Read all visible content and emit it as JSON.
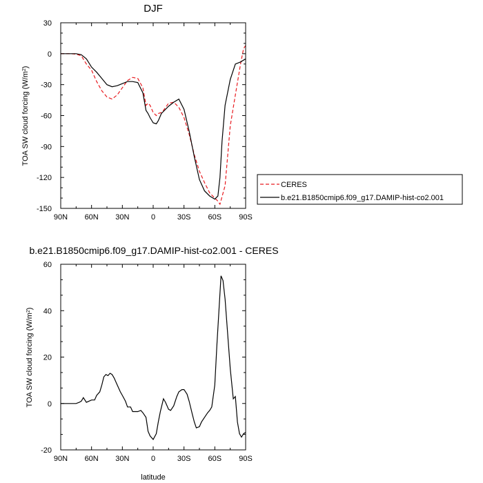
{
  "chart_data": [
    {
      "type": "line",
      "title": "DJF",
      "xlabel": "",
      "ylabel": "TOA SW cloud forcing (W/m²)",
      "ylabel_base": "TOA SW cloud forcing (W/m",
      "ylabel_sup": "2",
      "ylabel_close": ")",
      "xlim": [
        90,
        -90
      ],
      "ylim": [
        -150,
        30
      ],
      "xticks": [
        90,
        60,
        30,
        0,
        -30,
        -60,
        -90
      ],
      "xtick_labels": [
        "90N",
        "60N",
        "30N",
        "0",
        "30S",
        "60S",
        "90S"
      ],
      "yticks": [
        30,
        0,
        -30,
        -60,
        -90,
        -120,
        -150
      ],
      "ytick_labels": [
        "30",
        "0",
        "-30",
        "-60",
        "-90",
        "-120",
        "-150"
      ],
      "legend_position": "right-bottom",
      "series": [
        {
          "name": "CERES",
          "color": "#e8191e",
          "style": "dashed",
          "x": [
            90,
            85,
            80,
            75,
            70,
            65,
            60,
            55,
            50,
            45,
            40,
            35,
            30,
            25,
            20,
            15,
            10,
            7,
            5,
            3,
            0,
            -3,
            -5,
            -8,
            -10,
            -15,
            -20,
            -25,
            -30,
            -35,
            -40,
            -45,
            -50,
            -55,
            -60,
            -63,
            -65,
            -70,
            -75,
            -80,
            -85,
            -88,
            -90
          ],
          "y": [
            0,
            0,
            0,
            -0.5,
            -2,
            -10,
            -16,
            -27,
            -36,
            -42,
            -44,
            -40,
            -33,
            -26,
            -23,
            -24,
            -33,
            -50,
            -48,
            -50,
            -57,
            -60,
            -58,
            -57,
            -55,
            -48,
            -47,
            -52,
            -62,
            -78,
            -98,
            -114,
            -125,
            -135,
            -140,
            -143,
            -146,
            -128,
            -70,
            -40,
            -10,
            5,
            8
          ]
        },
        {
          "name": "b.e21.B1850cmip6.f09_g17.DAMIP-hist-co2.001",
          "color": "#000000",
          "style": "solid",
          "x": [
            90,
            85,
            80,
            75,
            70,
            65,
            60,
            55,
            50,
            45,
            40,
            35,
            30,
            25,
            20,
            15,
            10,
            7,
            5,
            3,
            0,
            -3,
            -5,
            -8,
            -10,
            -15,
            -20,
            -25,
            -30,
            -35,
            -40,
            -45,
            -50,
            -55,
            -60,
            -63,
            -65,
            -67,
            -70,
            -75,
            -80,
            -85,
            -90
          ],
          "y": [
            0,
            0,
            0,
            0,
            -1,
            -5,
            -13,
            -18,
            -24,
            -30,
            -32,
            -31,
            -29,
            -27,
            -27,
            -28,
            -38,
            -55,
            -58,
            -62,
            -67,
            -68,
            -65,
            -58,
            -56,
            -51,
            -47,
            -44,
            -54,
            -75,
            -100,
            -122,
            -133,
            -138,
            -141,
            -138,
            -120,
            -85,
            -50,
            -25,
            -10,
            -8,
            -5
          ]
        }
      ]
    },
    {
      "type": "line",
      "title": "b.e21.B1850cmip6.f09_g17.DAMIP-hist-co2.001 - CERES",
      "xlabel": "latitude",
      "ylabel": "TOA SW cloud forcing (W/m²)",
      "ylabel_base": "TOA SW cloud forcing (W/m",
      "ylabel_sup": "2",
      "ylabel_close": ")",
      "xlim": [
        90,
        -90
      ],
      "ylim": [
        -20,
        60
      ],
      "xticks": [
        90,
        60,
        30,
        0,
        -30,
        -60,
        -90
      ],
      "xtick_labels": [
        "90N",
        "60N",
        "30N",
        "0",
        "30S",
        "60S",
        "90S"
      ],
      "yticks": [
        60,
        40,
        20,
        0,
        -20
      ],
      "ytick_labels": [
        "60",
        "40",
        "20",
        "0",
        "-20"
      ],
      "series": [
        {
          "color": "#000000",
          "style": "solid",
          "x": [
            90,
            85,
            80,
            75,
            72,
            70,
            68,
            65,
            60,
            57,
            55,
            52,
            50,
            48,
            46,
            44,
            42,
            40,
            38,
            35,
            32,
            30,
            27,
            25,
            22,
            20,
            17,
            15,
            12,
            10,
            7,
            5,
            3,
            0,
            -3,
            -5,
            -7,
            -10,
            -12,
            -15,
            -17,
            -20,
            -23,
            -25,
            -28,
            -30,
            -33,
            -35,
            -38,
            -40,
            -42,
            -45,
            -47,
            -50,
            -53,
            -55,
            -57,
            -60,
            -62,
            -64,
            -66,
            -68,
            -70,
            -72,
            -75,
            -78,
            -80,
            -82,
            -84,
            -86,
            -88,
            -90
          ],
          "y": [
            0,
            0,
            0,
            0,
            0.5,
            1,
            2.5,
            0.5,
            1.5,
            1.5,
            3.5,
            5,
            8,
            11.5,
            12.5,
            12,
            13,
            12.5,
            11,
            8,
            5,
            3.5,
            1,
            -1.5,
            -1.5,
            -3.5,
            -3.5,
            -3.5,
            -3,
            -4,
            -6,
            -12,
            -14,
            -15.5,
            -13,
            -8,
            -3.5,
            2,
            0.5,
            -2.5,
            -3,
            -1,
            3,
            5,
            6,
            6,
            4,
            1,
            -4.5,
            -8,
            -10.5,
            -10,
            -8,
            -6,
            -4,
            -3,
            -1.5,
            8,
            25,
            40,
            55,
            53,
            45,
            33,
            15,
            2,
            3,
            -8,
            -13,
            -14.5,
            -13,
            -12.5
          ]
        }
      ]
    }
  ],
  "legend_title_ceres": "CERES",
  "legend_title_model": "b.e21.B1850cmip6.f09_g17.DAMIP-hist-co2.001"
}
